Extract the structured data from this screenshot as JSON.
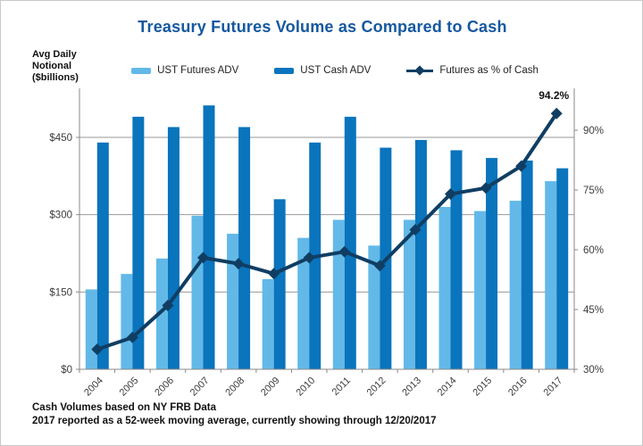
{
  "title": "Treasury Futures Volume as Compared to Cash",
  "y_axis_unit_lines": "Avg Daily\nNotional\n($billions)",
  "legend": [
    {
      "label": "UST Futures ADV",
      "type": "bar",
      "color": "#62B9E8"
    },
    {
      "label": "UST Cash ADV",
      "type": "bar",
      "color": "#0A74BC"
    },
    {
      "label": "Futures as % of Cash",
      "type": "line-diamond",
      "color": "#103E63"
    }
  ],
  "annotation": {
    "text": "94.2%"
  },
  "footnotes": {
    "line1": "Cash Volumes based on NY FRB Data",
    "line2": "2017 reported as a 52-week moving average, currently showing through 12/20/2017"
  },
  "colors": {
    "title": "#1558A0",
    "futures_bar": "#62B9E8",
    "cash_bar": "#0A74BC",
    "pct_line": "#103E63",
    "gridline": "#9A9A9A",
    "axis": "#8A8A8A",
    "tick_text": "#3C3C3C",
    "annotation_text": "#111111"
  },
  "chart_data": {
    "type": "bar",
    "subtype": "grouped-bars-with-line",
    "title": "Treasury Futures Volume as Compared to Cash",
    "categories": [
      "2004",
      "2005",
      "2006",
      "2007",
      "2008",
      "2009",
      "2010",
      "2011",
      "2012",
      "2013",
      "2014",
      "2015",
      "2016",
      "2017"
    ],
    "series": [
      {
        "name": "UST Futures ADV",
        "type": "bar",
        "axis": "left",
        "values": [
          155,
          185,
          215,
          298,
          263,
          175,
          255,
          290,
          240,
          290,
          315,
          307,
          327,
          365
        ]
      },
      {
        "name": "UST Cash ADV",
        "type": "bar",
        "axis": "left",
        "values": [
          440,
          490,
          470,
          512,
          470,
          330,
          440,
          490,
          430,
          445,
          425,
          410,
          405,
          390
        ]
      },
      {
        "name": "Futures as % of Cash",
        "type": "line",
        "axis": "right",
        "values": [
          35,
          38,
          46,
          58,
          56.5,
          54,
          58,
          59.5,
          56,
          65,
          74,
          75.5,
          81,
          94.2
        ]
      }
    ],
    "left_axis": {
      "label": "Avg Daily Notional ($billions)",
      "ticks": [
        {
          "label": "$0",
          "value": 0
        },
        {
          "label": "$150",
          "value": 150
        },
        {
          "label": "$300",
          "value": 300
        },
        {
          "label": "$450",
          "value": 450
        }
      ],
      "range": [
        0,
        545
      ]
    },
    "right_axis": {
      "label": "Futures as % of Cash",
      "ticks": [
        {
          "label": "30%",
          "value": 30
        },
        {
          "label": "45%",
          "value": 45
        },
        {
          "label": "60%",
          "value": 60
        },
        {
          "label": "75%",
          "value": 75
        },
        {
          "label": "90%",
          "value": 90
        }
      ],
      "range": [
        30,
        100.5
      ]
    },
    "grid": true,
    "legend_position": "top",
    "annotations": [
      {
        "text": "94.2%",
        "category": "2017",
        "series": "Futures as % of Cash"
      }
    ]
  }
}
